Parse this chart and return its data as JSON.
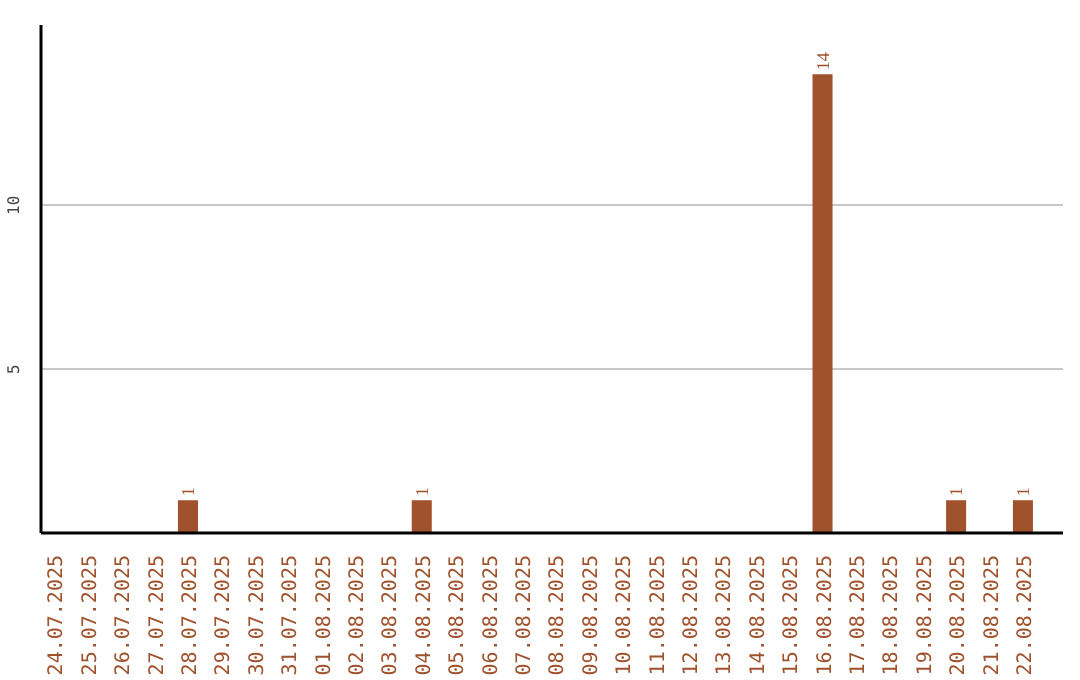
{
  "chart_data": {
    "type": "bar",
    "categories": [
      "24.07.2025",
      "25.07.2025",
      "26.07.2025",
      "27.07.2025",
      "28.07.2025",
      "29.07.2025",
      "30.07.2025",
      "31.07.2025",
      "01.08.2025",
      "02.08.2025",
      "03.08.2025",
      "04.08.2025",
      "05.08.2025",
      "06.08.2025",
      "07.08.2025",
      "08.08.2025",
      "09.08.2025",
      "10.08.2025",
      "11.08.2025",
      "12.08.2025",
      "13.08.2025",
      "14.08.2025",
      "15.08.2025",
      "16.08.2025",
      "17.08.2025",
      "18.08.2025",
      "19.08.2025",
      "20.08.2025",
      "21.08.2025",
      "22.08.2025"
    ],
    "values": [
      0,
      0,
      0,
      0,
      1,
      0,
      0,
      0,
      0,
      0,
      0,
      1,
      0,
      0,
      0,
      0,
      0,
      0,
      0,
      0,
      0,
      0,
      0,
      14,
      0,
      0,
      0,
      1,
      0,
      1
    ],
    "value_labels": [
      null,
      null,
      null,
      null,
      "1",
      null,
      null,
      null,
      null,
      null,
      null,
      "1",
      null,
      null,
      null,
      null,
      null,
      null,
      null,
      null,
      null,
      null,
      null,
      "14",
      null,
      null,
      null,
      "1",
      null,
      "1"
    ],
    "color": "#a0522d",
    "ylim": [
      0,
      15.5
    ],
    "yticks": [
      5,
      10
    ],
    "grid": "y"
  }
}
